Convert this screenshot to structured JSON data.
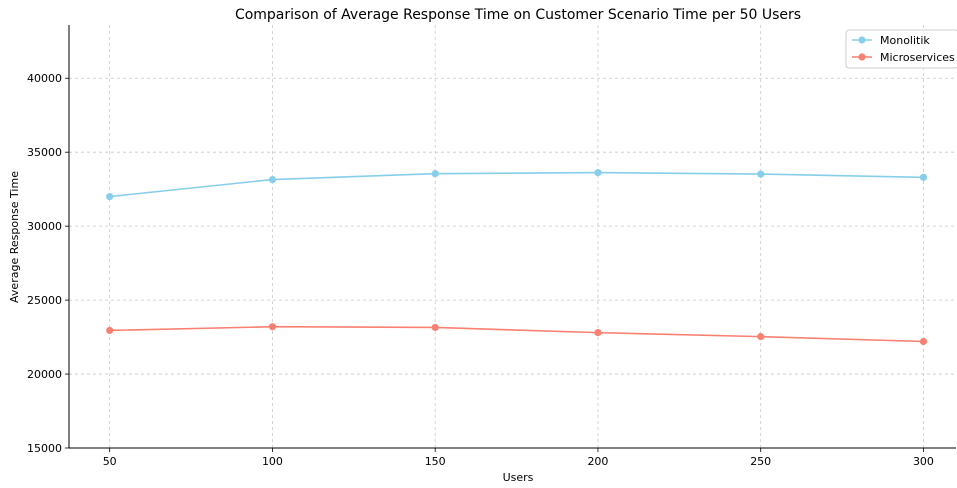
{
  "chart_data": {
    "type": "line",
    "title": "Comparison of Average Response Time on Customer Scenario Time per 50 Users",
    "xlabel": "Users",
    "ylabel": "Average Response Time",
    "x": [
      50,
      100,
      150,
      200,
      250,
      300
    ],
    "x_ticks": [
      "50",
      "100",
      "150",
      "200",
      "250",
      "300"
    ],
    "y_ticks": [
      "15000",
      "20000",
      "25000",
      "30000",
      "35000",
      "40000"
    ],
    "xlim": [
      37.5,
      310
    ],
    "ylim": [
      15000,
      43600
    ],
    "grid": true,
    "legend_position": "top-right",
    "series": [
      {
        "name": "Monolitik",
        "color": "#87ceeb",
        "values": [
          32000,
          33150,
          33550,
          33620,
          33520,
          33300
        ]
      },
      {
        "name": "Microservices",
        "color": "#fa8072",
        "values": [
          22950,
          23200,
          23150,
          22800,
          22530,
          22200
        ]
      }
    ]
  }
}
